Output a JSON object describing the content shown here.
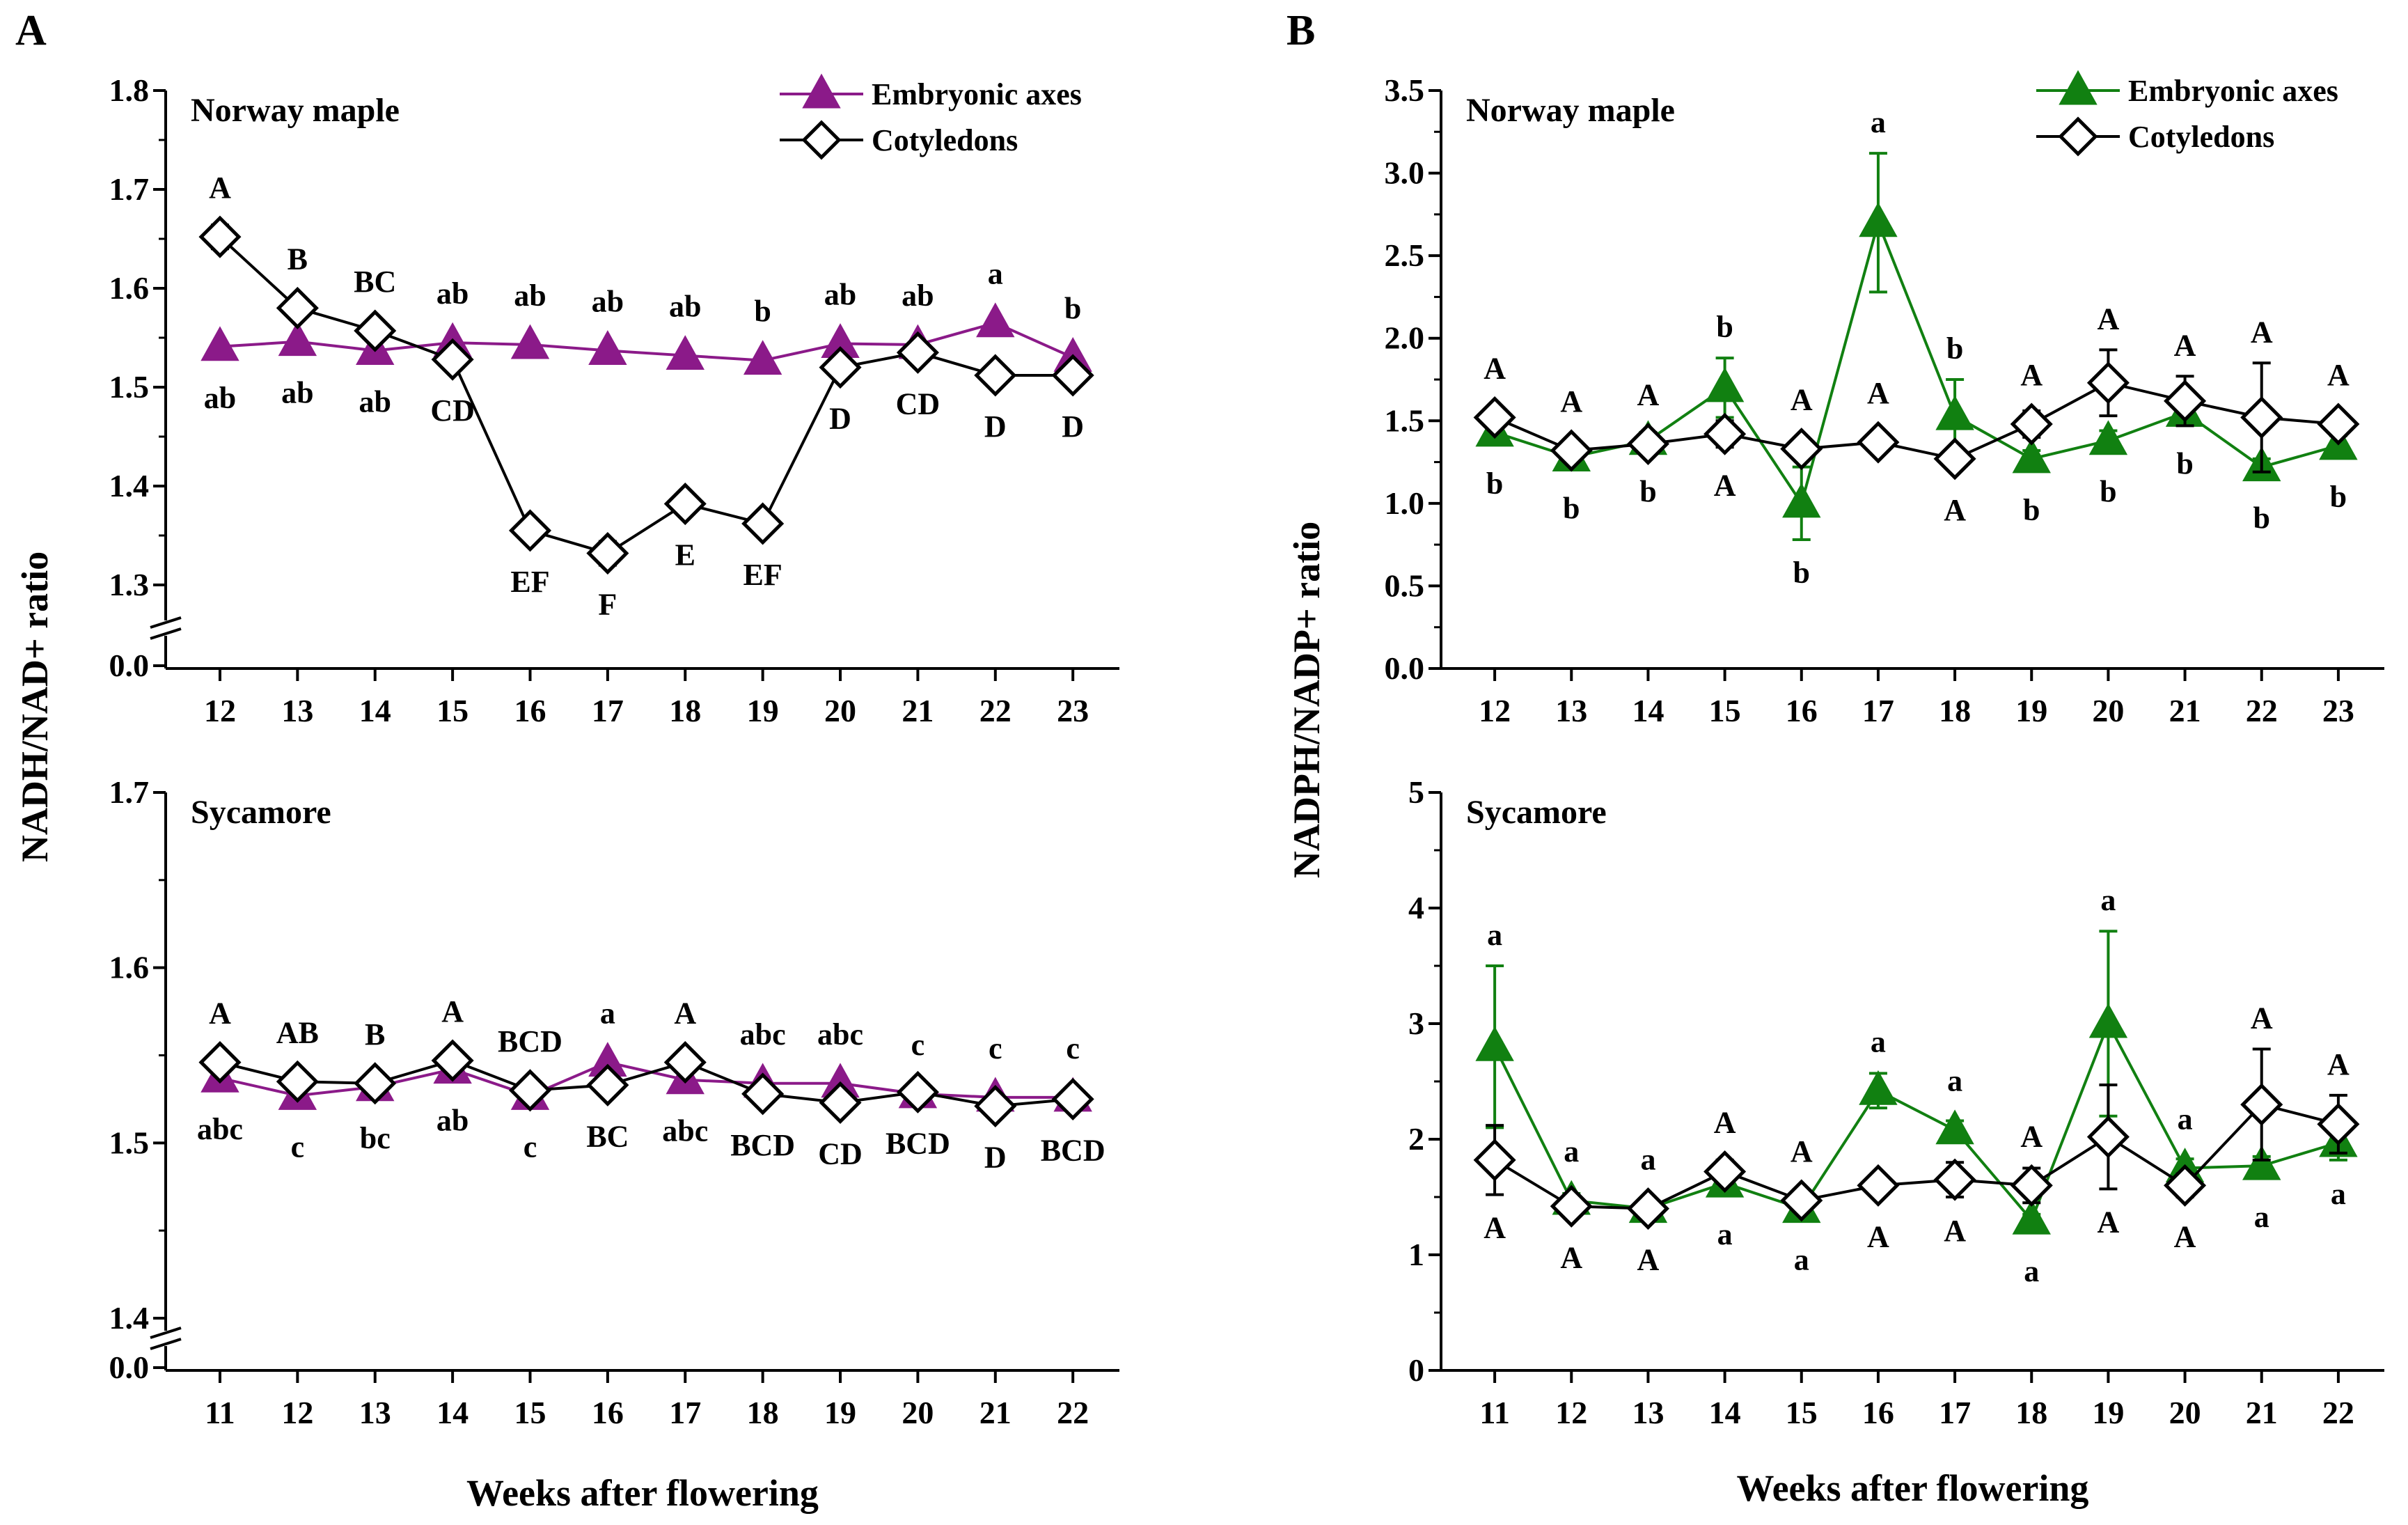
{
  "figure": {
    "panel_letters": [
      "A",
      "B"
    ]
  },
  "colors": {
    "purple": "#8b1a89",
    "green": "#118011",
    "black": "#000000"
  },
  "chart_data": [
    {
      "id": "A-top",
      "panel": "A",
      "type": "line",
      "title": "Norway maple",
      "ylabel": "NADH/NAD+ ratio",
      "xlabel": "",
      "x": [
        12,
        13,
        14,
        15,
        16,
        17,
        18,
        19,
        20,
        21,
        22,
        23
      ],
      "ylim": [
        1.3,
        1.8
      ],
      "yticks": [
        "1.3",
        "1.4",
        "1.5",
        "1.6",
        "1.7",
        "1.8"
      ],
      "break_label": "0.0",
      "legend_position": "top-right",
      "series": [
        {
          "name": "Embryonic axes",
          "marker": "triangle",
          "color": "#8b1a89",
          "values": [
            1.541,
            1.546,
            1.537,
            1.545,
            1.543,
            1.537,
            1.532,
            1.527,
            1.544,
            1.543,
            1.565,
            1.53
          ],
          "errors": [
            0,
            0,
            0,
            0,
            0,
            0,
            0,
            0,
            0,
            0,
            0,
            0
          ],
          "labels": [
            "ab",
            "ab",
            "ab",
            "ab",
            "ab",
            "ab",
            "ab",
            "b",
            "ab",
            "ab",
            "a",
            "b"
          ],
          "label_pos": [
            "below",
            "below",
            "below",
            "above",
            "above",
            "above",
            "above",
            "above",
            "above",
            "above",
            "above",
            "above"
          ]
        },
        {
          "name": "Cotyledons",
          "marker": "diamond",
          "color": "#000000",
          "values": [
            1.652,
            1.58,
            1.557,
            1.528,
            1.355,
            1.332,
            1.382,
            1.362,
            1.52,
            1.535,
            1.512,
            1.512
          ],
          "errors": [
            0.012,
            0.01,
            0.01,
            0.01,
            0.008,
            0.012,
            0.008,
            0.007,
            0.01,
            0.01,
            0.008,
            0.008
          ],
          "labels": [
            "A",
            "B",
            "BC",
            "CD",
            "EF",
            "F",
            "E",
            "EF",
            "D",
            "CD",
            "D",
            "D"
          ],
          "label_pos": [
            "above",
            "above",
            "above",
            "below",
            "below",
            "below",
            "below",
            "below",
            "below",
            "below",
            "below",
            "below"
          ]
        }
      ]
    },
    {
      "id": "A-bottom",
      "panel": "A",
      "type": "line",
      "title": "Sycamore",
      "ylabel": "",
      "xlabel": "Weeks after flowering",
      "x": [
        11,
        12,
        13,
        14,
        15,
        16,
        17,
        18,
        19,
        20,
        21,
        22
      ],
      "ylim": [
        1.4,
        1.7
      ],
      "yticks": [
        "1.4",
        "1.5",
        "1.6",
        "1.7"
      ],
      "break_label": "0.0",
      "legend_position": "none",
      "series": [
        {
          "name": "Embryonic axes",
          "marker": "triangle",
          "color": "#8b1a89",
          "values": [
            1.537,
            1.527,
            1.532,
            1.542,
            1.527,
            1.546,
            1.536,
            1.534,
            1.534,
            1.528,
            1.526,
            1.526
          ],
          "errors": [
            0,
            0,
            0,
            0,
            0,
            0,
            0,
            0,
            0,
            0,
            0,
            0
          ],
          "labels": [
            "abc",
            "c",
            "bc",
            "ab",
            "c",
            "a",
            "abc",
            "abc",
            "abc",
            "c",
            "c",
            "c"
          ],
          "label_pos": [
            "below",
            "below",
            "below",
            "below",
            "below",
            "above",
            "below",
            "above",
            "above",
            "above",
            "above",
            "above"
          ]
        },
        {
          "name": "Cotyledons",
          "marker": "diamond",
          "color": "#000000",
          "values": [
            1.546,
            1.535,
            1.534,
            1.547,
            1.53,
            1.533,
            1.546,
            1.528,
            1.523,
            1.529,
            1.521,
            1.525
          ],
          "errors": [
            0.005,
            0.004,
            0.004,
            0.004,
            0.005,
            0.005,
            0.004,
            0.004,
            0.004,
            0.004,
            0.004,
            0.004
          ],
          "labels": [
            "A",
            "AB",
            "B",
            "A",
            "BCD",
            "BC",
            "A",
            "BCD",
            "CD",
            "BCD",
            "D",
            "BCD"
          ],
          "label_pos": [
            "above",
            "above",
            "above",
            "above",
            "above",
            "below",
            "above",
            "below",
            "below",
            "below",
            "below",
            "below"
          ]
        }
      ]
    },
    {
      "id": "B-top",
      "panel": "B",
      "type": "line",
      "title": "Norway maple",
      "ylabel": "NADPH/NADP+ ratio",
      "xlabel": "",
      "x": [
        12,
        13,
        14,
        15,
        16,
        17,
        18,
        19,
        20,
        21,
        22,
        23
      ],
      "ylim": [
        0.0,
        3.5
      ],
      "yticks": [
        "0.0",
        "0.5",
        "1.0",
        "1.5",
        "2.0",
        "2.5",
        "3.0",
        "3.5"
      ],
      "break_label": "",
      "legend_position": "top-right",
      "series": [
        {
          "name": "Embryonic axes",
          "marker": "triangle",
          "color": "#118011",
          "values": [
            1.43,
            1.28,
            1.38,
            1.7,
            1.0,
            2.7,
            1.53,
            1.27,
            1.38,
            1.55,
            1.22,
            1.35
          ],
          "errors": [
            0.05,
            0.04,
            0.05,
            0.18,
            0.22,
            0.42,
            0.22,
            0.05,
            0.06,
            0.06,
            0.05,
            0.06
          ],
          "labels": [
            "b",
            "b",
            "b",
            "b",
            "b",
            "a",
            "b",
            "b",
            "b",
            "b",
            "b",
            "b"
          ],
          "label_pos": [
            "below",
            "below",
            "below",
            "above",
            "below",
            "above",
            "above",
            "below",
            "below",
            "below",
            "below",
            "below"
          ]
        },
        {
          "name": "Cotyledons",
          "marker": "diamond",
          "color": "#000000",
          "values": [
            1.52,
            1.32,
            1.36,
            1.42,
            1.33,
            1.37,
            1.27,
            1.48,
            1.73,
            1.62,
            1.52,
            1.48
          ],
          "errors": [
            0.05,
            0.05,
            0.05,
            0.08,
            0.05,
            0.05,
            0.05,
            0.08,
            0.2,
            0.15,
            0.33,
            0.06
          ],
          "labels": [
            "A",
            "A",
            "A",
            "A",
            "A",
            "A",
            "A",
            "A",
            "A",
            "A",
            "A",
            "A"
          ],
          "label_pos": [
            "above",
            "above",
            "above",
            "below",
            "above",
            "above",
            "below",
            "above",
            "above",
            "above",
            "above",
            "above"
          ]
        }
      ]
    },
    {
      "id": "B-bottom",
      "panel": "B",
      "type": "line",
      "title": "Sycamore",
      "ylabel": "",
      "xlabel": "Weeks after flowering",
      "x": [
        11,
        12,
        13,
        14,
        15,
        16,
        17,
        18,
        19,
        20,
        21,
        22
      ],
      "ylim": [
        0,
        5
      ],
      "yticks": [
        "0",
        "1",
        "2",
        "3",
        "4",
        "5"
      ],
      "break_label": "",
      "legend_position": "none",
      "series": [
        {
          "name": "Embryonic axes",
          "marker": "triangle",
          "color": "#118011",
          "values": [
            2.8,
            1.47,
            1.4,
            1.62,
            1.4,
            2.42,
            2.08,
            1.3,
            3.0,
            1.75,
            1.77,
            1.97
          ],
          "errors": [
            0.7,
            0.06,
            0.06,
            0.08,
            0.06,
            0.15,
            0.08,
            0.05,
            0.8,
            0.08,
            0.08,
            0.15
          ],
          "labels": [
            "a",
            "a",
            "a",
            "a",
            "a",
            "a",
            "a",
            "a",
            "a",
            "a",
            "a",
            "a"
          ],
          "label_pos": [
            "above",
            "above",
            "above",
            "below",
            "below",
            "above",
            "above",
            "below",
            "above",
            "above",
            "below",
            "below"
          ]
        },
        {
          "name": "Cotyledons",
          "marker": "diamond",
          "color": "#000000",
          "values": [
            1.82,
            1.42,
            1.4,
            1.72,
            1.47,
            1.6,
            1.65,
            1.6,
            2.02,
            1.6,
            2.3,
            2.13
          ],
          "errors": [
            0.3,
            0.06,
            0.06,
            0.1,
            0.08,
            0.05,
            0.15,
            0.15,
            0.45,
            0.1,
            0.48,
            0.25
          ],
          "labels": [
            "A",
            "A",
            "A",
            "A",
            "A",
            "A",
            "A",
            "A",
            "A",
            "A",
            "A",
            "A"
          ],
          "label_pos": [
            "below",
            "below",
            "below",
            "above",
            "above",
            "below",
            "below",
            "above",
            "below",
            "below",
            "above",
            "above"
          ]
        }
      ]
    }
  ]
}
